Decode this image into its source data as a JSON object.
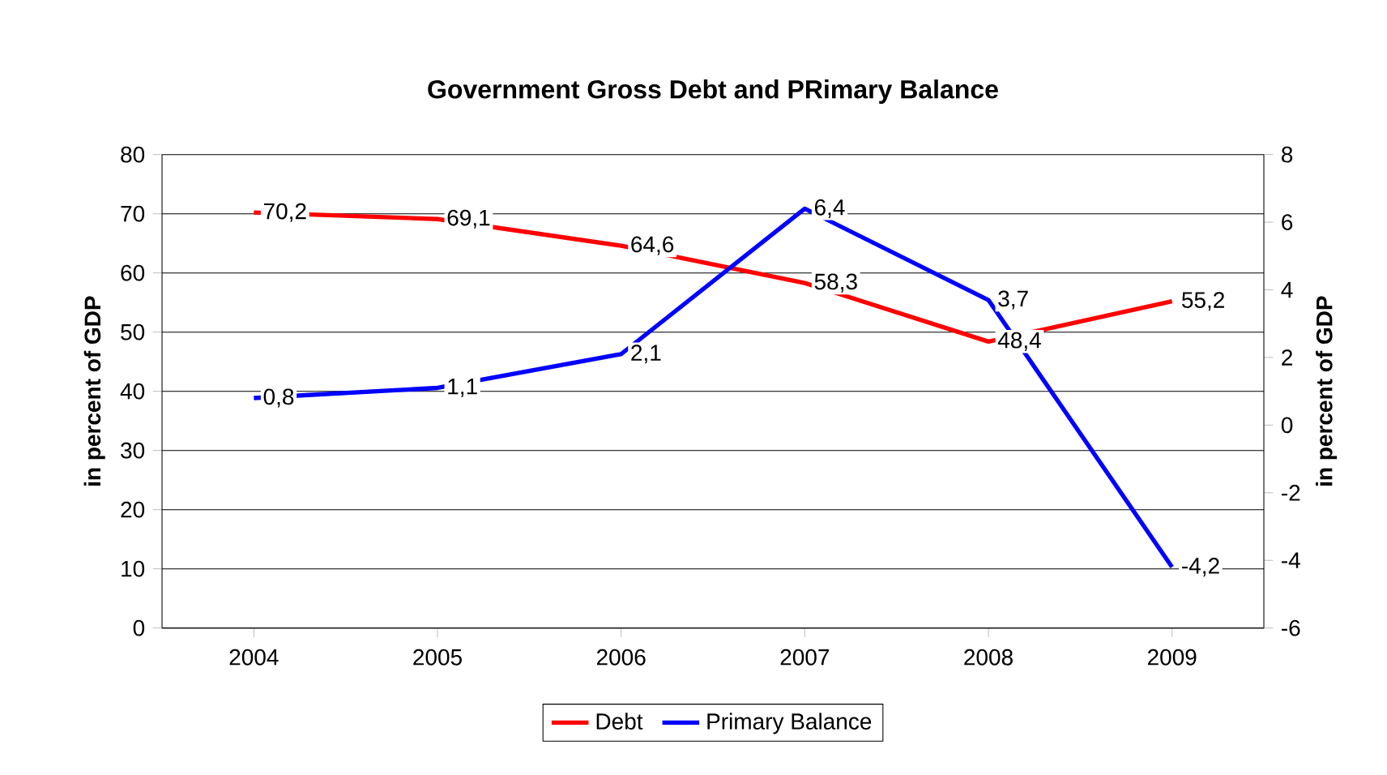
{
  "chart_data": {
    "type": "line",
    "title": "Government Gross Debt and PRimary Balance",
    "ylabel": "in percent of GDP",
    "y2label": "in percent of GDP",
    "categories": [
      "2004",
      "2005",
      "2006",
      "2007",
      "2008",
      "2009"
    ],
    "series": [
      {
        "name": "Debt",
        "color": "#ff0000",
        "values": [
          70.2,
          69.1,
          64.6,
          58.3,
          48.4,
          55.2
        ],
        "value_labels": [
          "70,2",
          "69,1",
          "64,6",
          "58,3",
          "48,4",
          "55,2"
        ]
      },
      {
        "name": "Primary Balance",
        "color": "#0000ff",
        "axis": "y2",
        "values": [
          0.8,
          1.1,
          2.1,
          6.4,
          3.7,
          -4.2
        ],
        "value_labels": [
          "0,8",
          "1,1",
          "2,1",
          "6,4",
          "3,7",
          "-4,2"
        ]
      }
    ],
    "ylim": [
      0,
      80
    ],
    "yticks": [
      0,
      10,
      20,
      30,
      40,
      50,
      60,
      70,
      80
    ],
    "y2lim": [
      -6,
      8
    ],
    "y2ticks": [
      -6,
      -4,
      -2,
      0,
      2,
      4,
      6,
      8
    ],
    "grid": "y",
    "legend": "bottom"
  }
}
